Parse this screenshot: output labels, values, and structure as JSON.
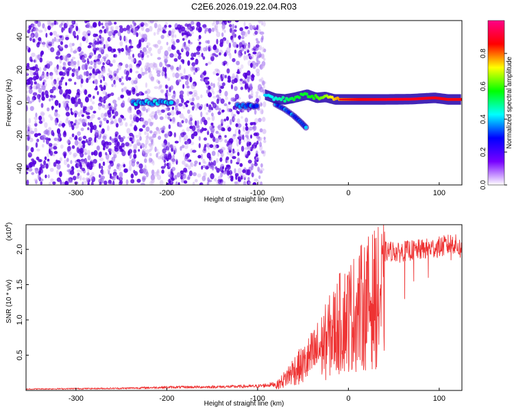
{
  "figure_title": "C2E6.2026.019.22.04.R03",
  "colors": {
    "snr_line": "#ee3333",
    "spec_strong": "#5500dd",
    "spec_weak": "#c9a8f2"
  },
  "chart_data": [
    {
      "type": "heatmap",
      "name": "spectrogram",
      "xlabel": "Height of straight line (km)",
      "ylabel": "Frequency (Hz)",
      "xlim": [
        -355,
        125
      ],
      "ylim": [
        -50,
        50
      ],
      "xticks": [
        -300,
        -200,
        -100,
        0,
        100
      ],
      "yticks": [
        -40,
        -20,
        0,
        20,
        40
      ],
      "xtick_labels": [
        "-300",
        "-200",
        "-100",
        "0",
        "100"
      ],
      "ytick_labels": [
        "-40",
        "-20",
        "0",
        "20",
        "40"
      ],
      "noise_region_x": [
        -355,
        -92
      ],
      "signal_track": [
        {
          "x": -92,
          "f": 5,
          "a": 0.4
        },
        {
          "x": -80,
          "f": 2.5,
          "a": 0.45
        },
        {
          "x": -70,
          "f": 2,
          "a": 0.5
        },
        {
          "x": -60,
          "f": 3,
          "a": 0.55
        },
        {
          "x": -45,
          "f": 5,
          "a": 0.55
        },
        {
          "x": -35,
          "f": 3,
          "a": 0.6
        },
        {
          "x": -25,
          "f": 3.5,
          "a": 0.65
        },
        {
          "x": -15,
          "f": 2,
          "a": 0.75
        },
        {
          "x": -5,
          "f": 2,
          "a": 0.8
        },
        {
          "x": 10,
          "f": 2,
          "a": 0.85
        },
        {
          "x": 40,
          "f": 2,
          "a": 0.9
        },
        {
          "x": 70,
          "f": 2.2,
          "a": 0.9
        },
        {
          "x": 95,
          "f": 3,
          "a": 0.88
        },
        {
          "x": 110,
          "f": 2,
          "a": 0.85
        },
        {
          "x": 125,
          "f": 2,
          "a": 0.85
        }
      ],
      "branch_track": [
        {
          "x": -80,
          "f": -1
        },
        {
          "x": -70,
          "f": -4
        },
        {
          "x": -60,
          "f": -8
        },
        {
          "x": -52,
          "f": -12
        },
        {
          "x": -45,
          "f": -16
        }
      ],
      "early_feature": {
        "x": [
          -237,
          -195
        ],
        "f": 0
      },
      "gap_feature": {
        "x": [
          -122,
          -100
        ],
        "f": -2
      },
      "colorbar": {
        "label": "Normalized spectral amplitude",
        "range": [
          0,
          1
        ],
        "ticks": [
          0.0,
          0.2,
          0.4,
          0.6,
          0.8
        ],
        "tick_labels": [
          "0.0",
          "0.2",
          "0.4",
          "0.6",
          "0.8"
        ],
        "colors": [
          "#ffffff",
          "#7700ff",
          "#0000ff",
          "#00ffff",
          "#00ff00",
          "#ffff00",
          "#ff0000",
          "#ff0088"
        ]
      }
    },
    {
      "type": "line",
      "name": "snr",
      "xlabel": "Height of straight line (km)",
      "ylabel": "SNR (10 * v/v)",
      "scale_label": "(x10",
      "scale_exponent": "4",
      "xlim": [
        -355,
        125
      ],
      "ylim": [
        0,
        23500
      ],
      "xticks": [
        -300,
        -200,
        -100,
        0,
        100
      ],
      "xtick_labels": [
        "-300",
        "-200",
        "-100",
        "0",
        "100"
      ],
      "yticks": [
        5000,
        10000,
        15000,
        20000
      ],
      "ytick_labels": [
        "0.5",
        "1.0",
        "1.5",
        "2.0"
      ],
      "envelope_x": [
        -355,
        -250,
        -200,
        -150,
        -100,
        -80,
        -70,
        -60,
        -50,
        -40,
        -30,
        -20,
        -10,
        -5,
        0,
        10,
        20,
        30,
        40,
        50,
        55,
        60,
        70,
        80,
        90,
        100,
        110,
        115,
        120,
        125
      ],
      "envelope_y": [
        200,
        300,
        450,
        500,
        600,
        900,
        2500,
        4500,
        5500,
        7500,
        9500,
        12000,
        14500,
        15500,
        16000,
        17500,
        19000,
        20000,
        20700,
        20800,
        20500,
        20800,
        20900,
        21000,
        21200,
        21400,
        21700,
        22000,
        21500,
        21000
      ],
      "dips": [
        {
          "x": 62,
          "y": 13000
        },
        {
          "x": 72,
          "y": 15500
        },
        {
          "x": 88,
          "y": 16000
        },
        {
          "x": 113,
          "y": 18500
        },
        {
          "x": -3,
          "y": 8000
        },
        {
          "x": -12,
          "y": 5000
        },
        {
          "x": -25,
          "y": 1500
        }
      ]
    }
  ]
}
